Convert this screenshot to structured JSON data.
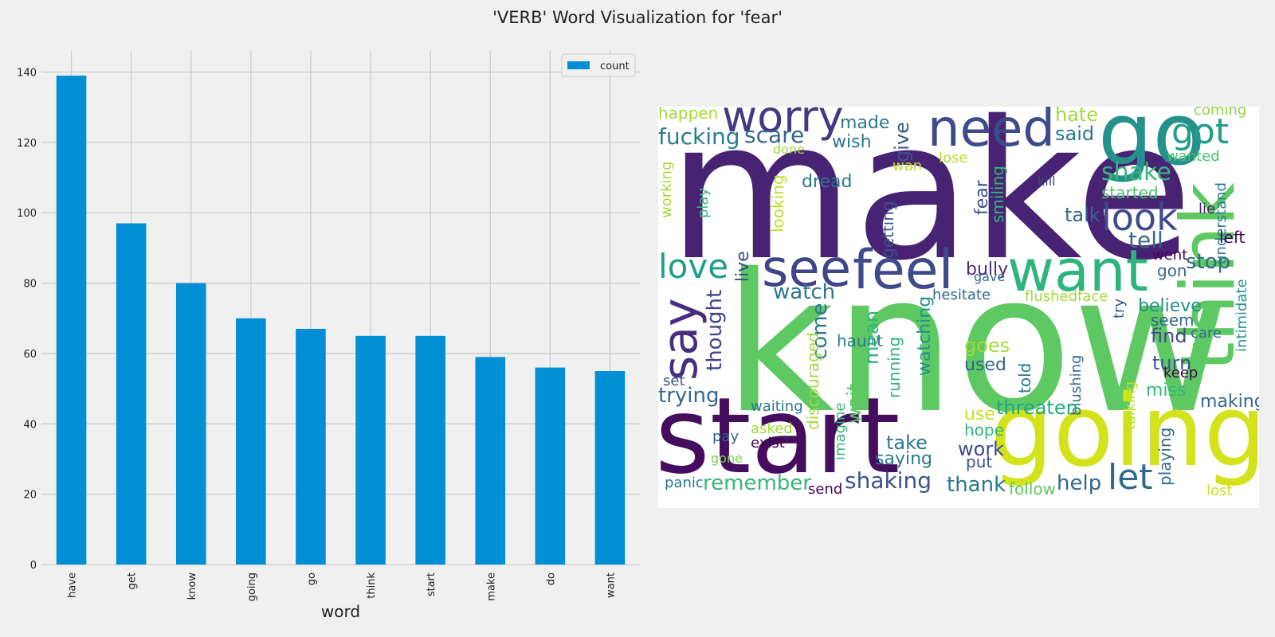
{
  "figure": {
    "title": "'VERB' Word Visualization for 'fear'"
  },
  "chart_data": [
    {
      "type": "bar",
      "categories": [
        "have",
        "get",
        "know",
        "going",
        "go",
        "think",
        "start",
        "make",
        "do",
        "want"
      ],
      "series": [
        {
          "name": "count",
          "values": [
            139,
            97,
            80,
            70,
            67,
            65,
            65,
            59,
            56,
            55
          ],
          "color": "#008fd5"
        }
      ],
      "xlabel": "word",
      "ylabel": "",
      "ylim": [
        0,
        146
      ],
      "yticks": [
        0,
        20,
        40,
        60,
        80,
        100,
        120,
        140
      ],
      "grid": true,
      "legend": "top-right"
    },
    {
      "type": "wordcloud",
      "words": [
        {
          "text": "make",
          "color": "#482374"
        },
        {
          "text": "know",
          "color": "#5ec962"
        },
        {
          "text": "start",
          "color": "#440d5e"
        },
        {
          "text": "going",
          "color": "#d2e21b"
        },
        {
          "text": "go",
          "color": "#25918c"
        },
        {
          "text": "think",
          "color": "#5ec962"
        },
        {
          "text": "need",
          "color": "#3e4a89"
        },
        {
          "text": "worry",
          "color": "#443983"
        },
        {
          "text": "want",
          "color": "#2fb47c"
        },
        {
          "text": "feel",
          "color": "#3e4a89"
        },
        {
          "text": "see",
          "color": "#414487"
        },
        {
          "text": "say",
          "color": "#472f7d"
        },
        {
          "text": "love",
          "color": "#1f9e89"
        },
        {
          "text": "got",
          "color": "#1f9e89"
        },
        {
          "text": "look",
          "color": "#3e4a89"
        },
        {
          "text": "let",
          "color": "#31688e"
        },
        {
          "text": "shake",
          "color": "#35b779"
        },
        {
          "text": "tell",
          "color": "#31688e"
        },
        {
          "text": "stop",
          "color": "#31688e"
        },
        {
          "text": "talk",
          "color": "#31688e"
        },
        {
          "text": "scare",
          "color": "#31688e"
        },
        {
          "text": "fucking",
          "color": "#287d8e"
        },
        {
          "text": "hate",
          "color": "#9fda3a"
        },
        {
          "text": "said",
          "color": "#2a788e"
        },
        {
          "text": "made",
          "color": "#2a788e"
        },
        {
          "text": "wish",
          "color": "#2a788e"
        },
        {
          "text": "give",
          "color": "#39568c"
        },
        {
          "text": "happen",
          "color": "#a0da39"
        },
        {
          "text": "dread",
          "color": "#2a788e"
        },
        {
          "text": "fear",
          "color": "#3b528b"
        },
        {
          "text": "smiling",
          "color": "#35b779"
        },
        {
          "text": "started",
          "color": "#4ac16d"
        },
        {
          "text": "kill",
          "color": "#414487"
        },
        {
          "text": "coming",
          "color": "#8fd744"
        },
        {
          "text": "wanted",
          "color": "#4ac16d"
        },
        {
          "text": "lose",
          "color": "#b5de2b"
        },
        {
          "text": "done",
          "color": "#a0da39"
        },
        {
          "text": "wan",
          "color": "#bddf26"
        },
        {
          "text": "working",
          "color": "#a0da39"
        },
        {
          "text": "play",
          "color": "#35b779"
        },
        {
          "text": "looking",
          "color": "#bddf26"
        },
        {
          "text": "getting",
          "color": "#3b528b"
        },
        {
          "text": "live",
          "color": "#3e4a89"
        },
        {
          "text": "lie",
          "color": "#482173"
        },
        {
          "text": "understand",
          "color": "#2a788e"
        },
        {
          "text": "left",
          "color": "#440154"
        },
        {
          "text": "went",
          "color": "#440154"
        },
        {
          "text": "bully",
          "color": "#472d7b"
        },
        {
          "text": "gave",
          "color": "#31688e"
        },
        {
          "text": "gon",
          "color": "#31688e"
        },
        {
          "text": "intimidate",
          "color": "#21918c"
        },
        {
          "text": "watch",
          "color": "#2a788e"
        },
        {
          "text": "hesitate",
          "color": "#31688e"
        },
        {
          "text": "flushedface",
          "color": "#a0da39"
        },
        {
          "text": "believe",
          "color": "#21918c"
        },
        {
          "text": "try",
          "color": "#3b528b"
        },
        {
          "text": "seem",
          "color": "#31688e"
        },
        {
          "text": "thought",
          "color": "#414487"
        },
        {
          "text": "come",
          "color": "#2a788e"
        },
        {
          "text": "find",
          "color": "#3e4a89"
        },
        {
          "text": "care",
          "color": "#31688e"
        },
        {
          "text": "turn",
          "color": "#3b528b"
        },
        {
          "text": "keep",
          "color": "#440154"
        },
        {
          "text": "haunt",
          "color": "#2a788e"
        },
        {
          "text": "mean",
          "color": "#2fb47c"
        },
        {
          "text": "watching",
          "color": "#21918c"
        },
        {
          "text": "goes",
          "color": "#a0da39"
        },
        {
          "text": "used",
          "color": "#31688e"
        },
        {
          "text": "discouraged",
          "color": "#a0da39"
        },
        {
          "text": "wait",
          "color": "#5ec962"
        },
        {
          "text": "running",
          "color": "#2fb47c"
        },
        {
          "text": "told",
          "color": "#2a788e"
        },
        {
          "text": "blushing",
          "color": "#31688e"
        },
        {
          "text": "talking",
          "color": "#bddf26"
        },
        {
          "text": "miss",
          "color": "#35b779"
        },
        {
          "text": "making",
          "color": "#31688e"
        },
        {
          "text": "set",
          "color": "#3b528b"
        },
        {
          "text": "trying",
          "color": "#31688e"
        },
        {
          "text": "waiting",
          "color": "#2a788e"
        },
        {
          "text": "threaten",
          "color": "#22a884"
        },
        {
          "text": "use",
          "color": "#c8e020"
        },
        {
          "text": "asked",
          "color": "#a0da39"
        },
        {
          "text": "hope",
          "color": "#35b779"
        },
        {
          "text": "work",
          "color": "#3e4a89"
        },
        {
          "text": "imagine",
          "color": "#35b779"
        },
        {
          "text": "pay",
          "color": "#31688e"
        },
        {
          "text": "exist",
          "color": "#440154"
        },
        {
          "text": "take",
          "color": "#2a788e"
        },
        {
          "text": "saying",
          "color": "#2a788e"
        },
        {
          "text": "put",
          "color": "#3b528b"
        },
        {
          "text": "playing",
          "color": "#31688e"
        },
        {
          "text": "gone",
          "color": "#7ad151"
        },
        {
          "text": "panic",
          "color": "#2a788e"
        },
        {
          "text": "remember",
          "color": "#35b779"
        },
        {
          "text": "shaking",
          "color": "#3b528b"
        },
        {
          "text": "thank",
          "color": "#2a788e"
        },
        {
          "text": "help",
          "color": "#31688e"
        },
        {
          "text": "send",
          "color": "#440154"
        },
        {
          "text": "follow",
          "color": "#5ec962"
        },
        {
          "text": "lost",
          "color": "#c8e020"
        }
      ]
    }
  ]
}
